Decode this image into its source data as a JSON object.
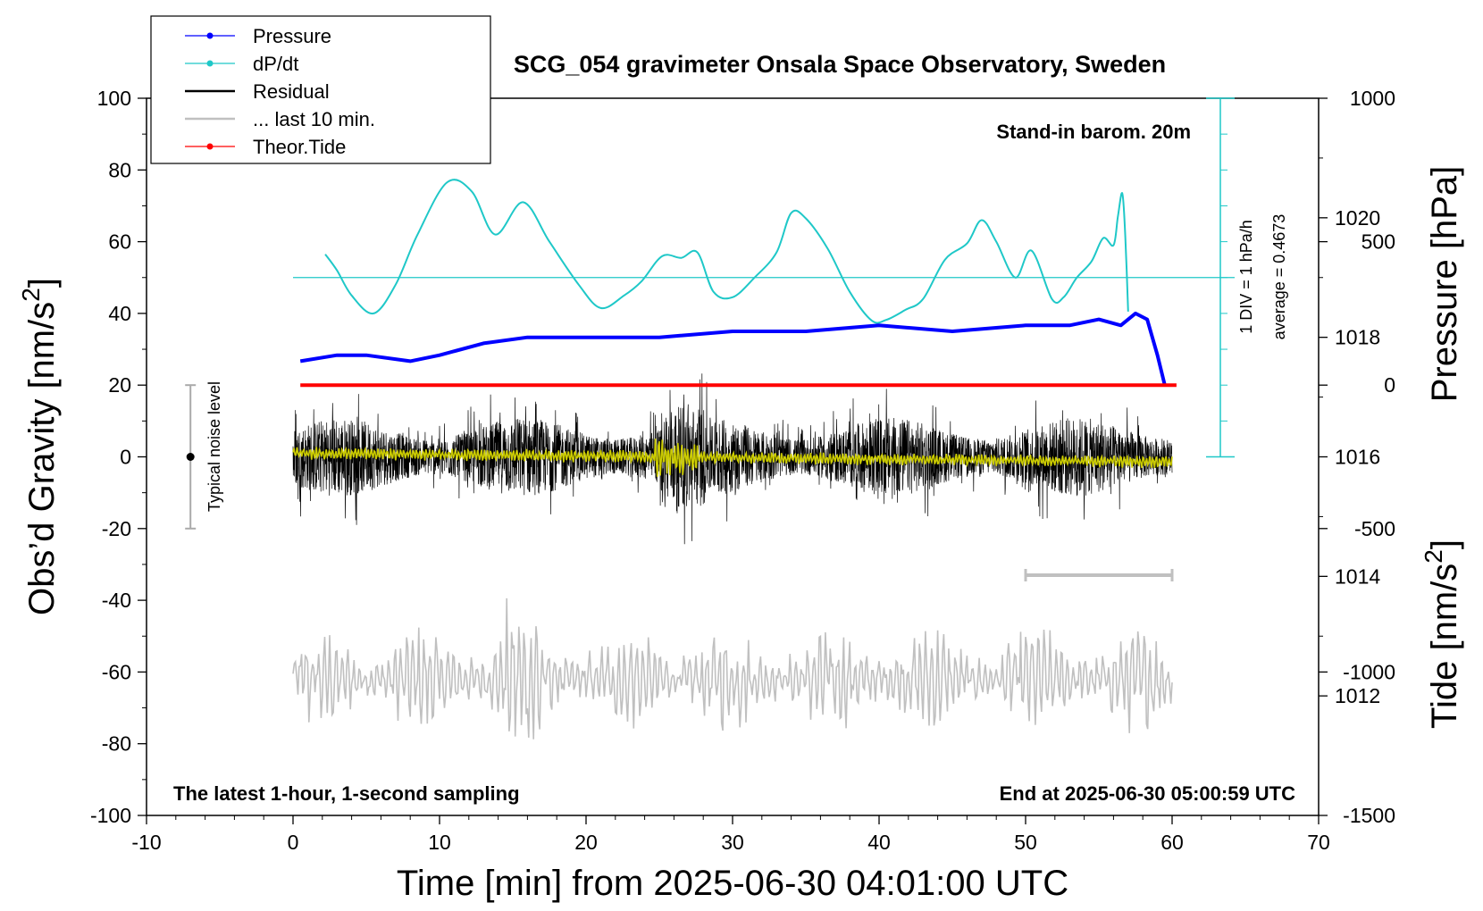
{
  "chart_data": {
    "type": "line",
    "title": "SCG_054 gravimeter Onsala Space Observatory, Sweden",
    "xlabel": "Time [min] from 2025-06-30 04:01:00 UTC",
    "ylabel": [
      "Obs’d Gravity [nm/s",
      "2",
      "]"
    ],
    "ylabel_right_top": "Pressure [hPa]",
    "ylabel_right_bottom": [
      "Tide [nm/s",
      "2",
      "]"
    ],
    "xlim": [
      -10,
      70
    ],
    "ylim": [
      -100,
      100
    ],
    "pressure_ylim": [
      1010,
      1022
    ],
    "tide_ylim": [
      -1500,
      1000
    ],
    "x_ticks": [
      "-10",
      "0",
      "10",
      "20",
      "30",
      "40",
      "50",
      "60",
      "70"
    ],
    "y_ticks": [
      "-100",
      "-80",
      "-60",
      "-40",
      "-20",
      "0",
      "20",
      "40",
      "60",
      "80",
      "100"
    ],
    "pressure_ticks": [
      "1012",
      "1014",
      "1016",
      "1018",
      "1020"
    ],
    "tide_ticks": [
      "-1500",
      "-1000",
      "-500",
      "0",
      "500",
      "1000"
    ],
    "legend": [
      {
        "label": "Pressure",
        "color": "#0000ff",
        "marker": "dot"
      },
      {
        "label": "dP/dt",
        "color": "#1fc8c8",
        "marker": "dot"
      },
      {
        "label": "Residual",
        "color": "#000000",
        "marker": "line"
      },
      {
        "label": "... last 10 min.",
        "color": "#c0c0c0",
        "marker": "line"
      },
      {
        "label": "Theor.Tide",
        "color": "#ff0000",
        "marker": "dot"
      }
    ],
    "annotations": {
      "stand_in": "Stand-in barom. 20m",
      "latest": "The latest 1-hour, 1-second sampling",
      "end_at": "End at 2025-06-30 05:00:59 UTC",
      "noise": "Typical noise level",
      "dpdt_scale": "1 DIV = 1 hPa/h",
      "dpdt_average": "average = 0.4673"
    },
    "pressure": {
      "name": "Pressure",
      "color": "#0000ff",
      "x": [
        0.5,
        3,
        5,
        8,
        10,
        13,
        16,
        20,
        25,
        30,
        35,
        40,
        45,
        50,
        53,
        55,
        56.5,
        57.5,
        58.3,
        59,
        59.5
      ],
      "y": [
        1017.6,
        1017.7,
        1017.7,
        1017.6,
        1017.7,
        1017.9,
        1018.0,
        1018.0,
        1018.0,
        1018.1,
        1018.1,
        1018.2,
        1018.1,
        1018.2,
        1018.2,
        1018.3,
        1018.2,
        1018.4,
        1018.3,
        1017.7,
        1017.2
      ]
    },
    "dpdt": {
      "name": "dP/dt",
      "color": "#1fc8c8",
      "baseline": 50,
      "x": [
        2.2,
        3,
        4,
        5.5,
        7,
        8.5,
        10.5,
        12.2,
        13.8,
        15.7,
        17.5,
        19.5,
        21,
        22.6,
        23.8,
        25.2,
        26.5,
        27.6,
        28.7,
        30,
        31.5,
        33,
        34,
        35,
        36.5,
        38,
        39.5,
        40.5,
        41.8,
        43,
        44.5,
        46,
        47,
        48,
        49.3,
        50.4,
        51.8,
        52.6,
        53.5,
        54.5,
        55.3,
        56,
        56.3,
        56.6,
        56.8,
        57
      ],
      "y": [
        56.5,
        52,
        45,
        40,
        48,
        62,
        76.5,
        74,
        62,
        71,
        60,
        48,
        41.5,
        45,
        49,
        56,
        55.5,
        57,
        46,
        44.5,
        50,
        57,
        68,
        66.5,
        58,
        46,
        38,
        38.2,
        41,
        44,
        55,
        59.5,
        66,
        60,
        50,
        57.5,
        44,
        44.5,
        50,
        54.5,
        61,
        59,
        67,
        73.5,
        62,
        40.5
      ]
    },
    "tide": {
      "name": "Theor.Tide",
      "color": "#ff0000",
      "x": [
        0.5,
        10,
        20,
        30,
        40,
        50,
        60.3
      ],
      "y": [
        0,
        0,
        0,
        0,
        0,
        0,
        0
      ]
    },
    "residual": {
      "name": "Residual",
      "color": "#000000",
      "smooth_color": "#cccc00",
      "x": [
        0,
        60
      ],
      "y_center": 0,
      "y_range": [
        -29,
        33
      ]
    },
    "last10": {
      "name": "... last 10 min.",
      "color": "#c0c0c0",
      "x": [
        0,
        60
      ],
      "y_center": -62,
      "y_range": [
        -87,
        -38
      ],
      "bar_x": [
        50,
        60
      ],
      "bar_y": -33
    },
    "noise_level": {
      "x": -7,
      "y": 0,
      "range": [
        -20,
        20
      ]
    }
  }
}
